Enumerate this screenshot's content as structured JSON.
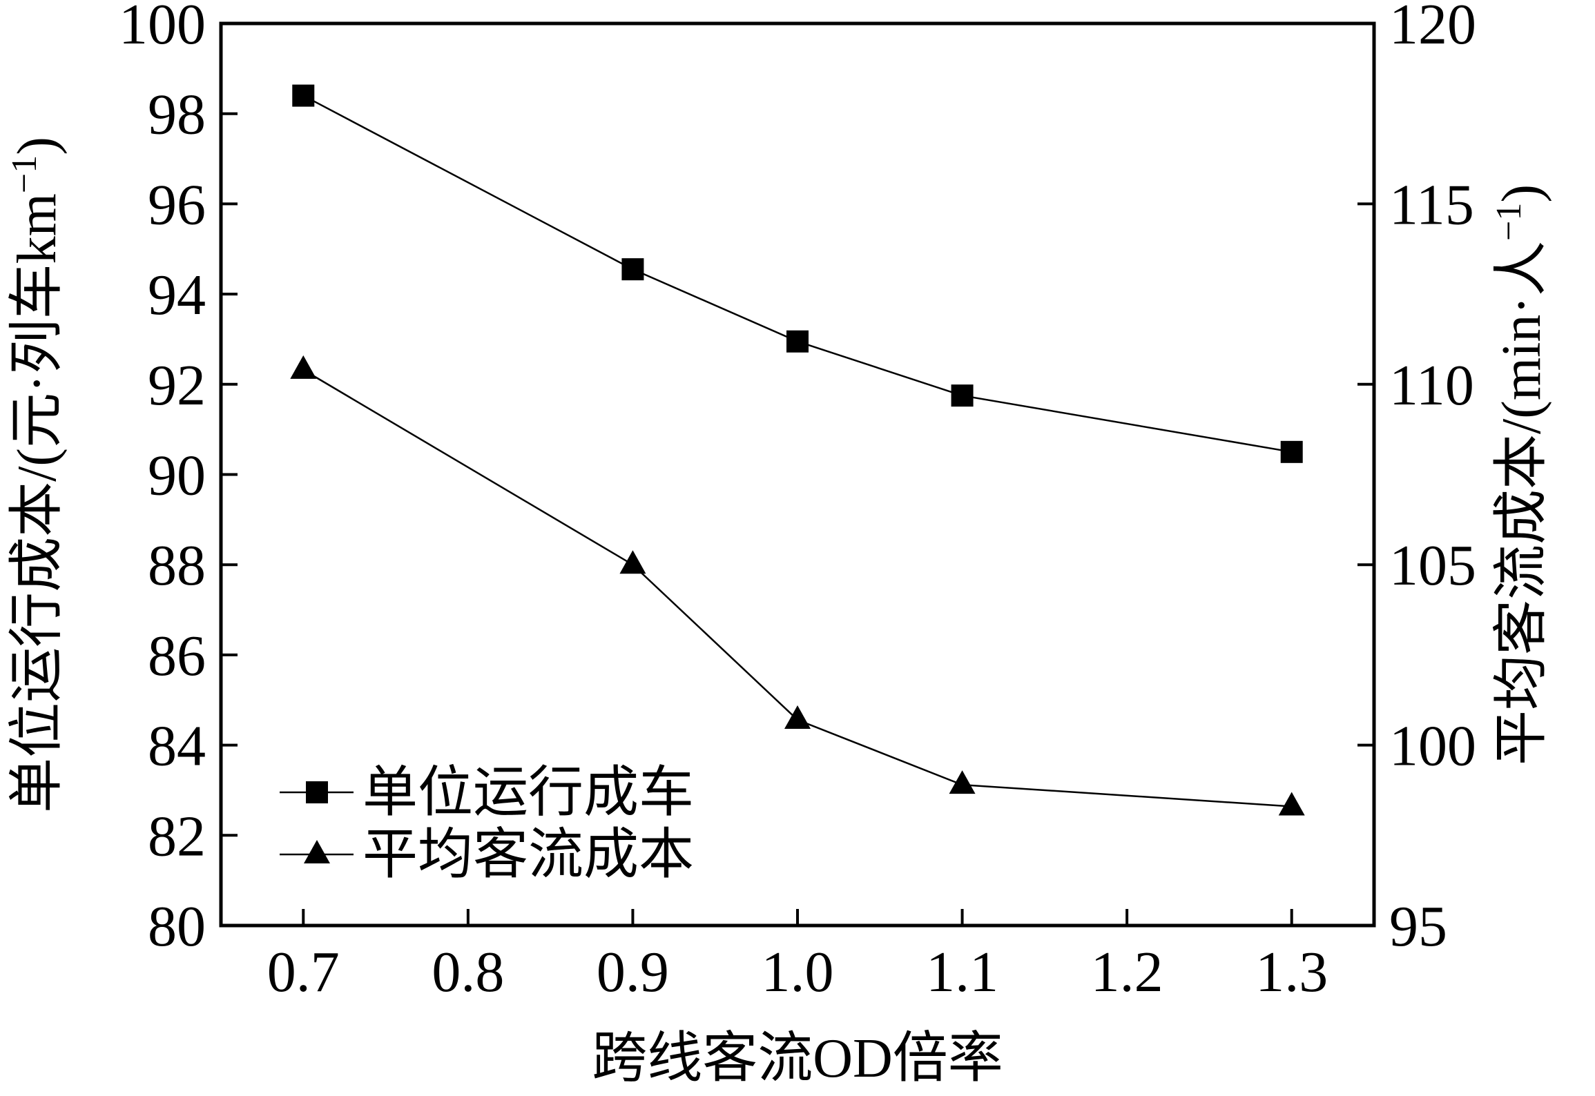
{
  "chart_data": {
    "type": "line",
    "title": "",
    "xlabel": "跨线客流OD倍率",
    "ylabel_left": "单位运行成本/(元·列车km",
    "ylabel_left_sup": "−1",
    "ylabel_left_close": ")",
    "ylabel_right": "平均客流成本/(min·人",
    "ylabel_right_sup": "−1",
    "ylabel_right_close": ")",
    "xlim": [
      0.65,
      1.35
    ],
    "ylim_left": [
      80,
      100
    ],
    "ylim_right": [
      95,
      120
    ],
    "x_ticks": [
      0.7,
      0.8,
      0.9,
      1.0,
      1.1,
      1.2,
      1.3
    ],
    "x_tick_labels": [
      "0.7",
      "0.8",
      "0.9",
      "1.0",
      "1.1",
      "1.2",
      "1.3"
    ],
    "y_left_ticks": [
      80,
      82,
      84,
      86,
      88,
      90,
      92,
      94,
      96,
      98,
      100
    ],
    "y_left_tick_labels": [
      "80",
      "82",
      "84",
      "86",
      "88",
      "90",
      "92",
      "94",
      "96",
      "98",
      "100"
    ],
    "y_right_ticks": [
      95,
      100,
      105,
      110,
      115,
      120
    ],
    "y_right_tick_labels": [
      "95",
      "100",
      "105",
      "110",
      "115",
      "120"
    ],
    "grid": false,
    "legend_position": "bottom-left",
    "series": [
      {
        "name": "单位运行成车",
        "axis": "left",
        "marker": "square",
        "color": "#000000",
        "x": [
          0.7,
          0.9,
          1.0,
          1.1,
          1.3
        ],
        "values": [
          98.4,
          94.55,
          92.95,
          91.75,
          90.5
        ]
      },
      {
        "name": "平均客流成本",
        "axis": "right",
        "marker": "triangle",
        "color": "#000000",
        "x": [
          0.7,
          0.9,
          1.0,
          1.1,
          1.3
        ],
        "values": [
          110.4,
          105.0,
          100.7,
          98.9,
          98.3
        ]
      }
    ]
  }
}
